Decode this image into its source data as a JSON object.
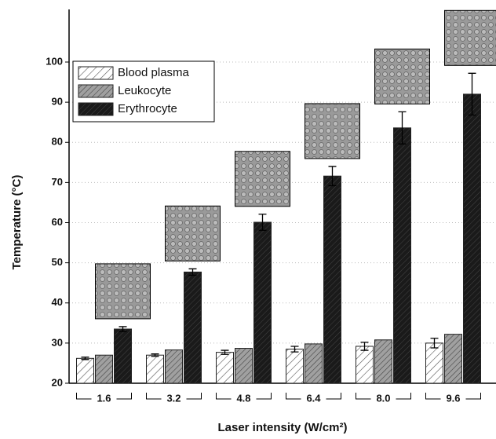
{
  "chart_data": {
    "type": "bar",
    "x_label": "Laser intensity (W/cm²)",
    "y_label": "Temperature (°C)",
    "categories": [
      "1.6",
      "3.2",
      "4.8",
      "6.4",
      "8.0",
      "9.6"
    ],
    "series": [
      {
        "name": "Blood plasma",
        "color": "#ffffff",
        "values": [
          26.2,
          27.0,
          27.7,
          28.5,
          29.2,
          30.0
        ],
        "errors": [
          0.3,
          0.3,
          0.5,
          0.7,
          1.0,
          1.2
        ]
      },
      {
        "name": "Leukocyte",
        "color": "#a0a0a0",
        "values": [
          27.0,
          28.3,
          28.7,
          29.8,
          30.8,
          32.2
        ]
      },
      {
        "name": "Erythrocyte",
        "color": "#1a1a1a",
        "values": [
          33.5,
          47.7,
          60.1,
          71.6,
          83.6,
          92.0
        ],
        "errors": [
          0.6,
          0.8,
          2.0,
          2.4,
          4.0,
          5.2
        ]
      }
    ],
    "ylim": [
      20,
      100
    ],
    "yticks": [
      20,
      30,
      40,
      50,
      60,
      70,
      80,
      90,
      100
    ],
    "grid": true,
    "legend": "upper left"
  }
}
